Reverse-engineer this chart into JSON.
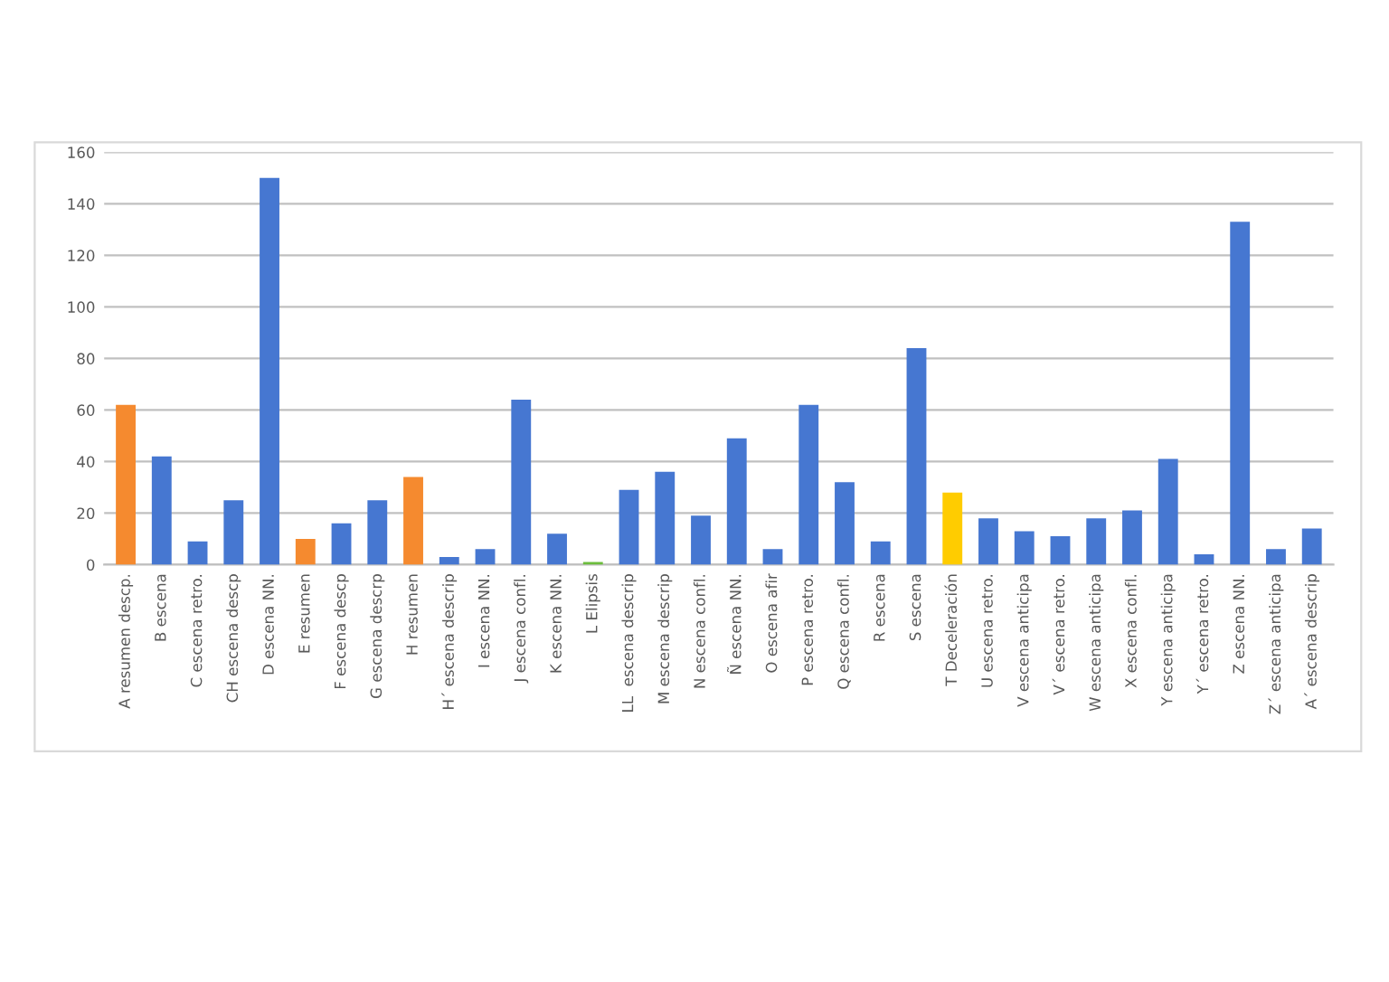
{
  "chart_data": {
    "type": "bar",
    "categories": [
      "A resumen descp.",
      "B escena",
      "C escena retro.",
      "CH escena descp",
      "D escena NN.",
      "E resumen",
      "F escena descp",
      "G escena descrp",
      "H resumen",
      "H´ escena descrip",
      "I escena NN.",
      "J escena confl.",
      "K escena NN.",
      "L Elipsis",
      "LL  escena descrip",
      "M escena descrip",
      "N escena confl.",
      "Ñ escena NN.",
      "O escena afir",
      "P escena retro.",
      "Q escena confl.",
      "R escena",
      "S escena",
      "T Deceleración",
      "U escena retro.",
      "V escena anticipa",
      "V´ escena retro.",
      "W escena anticipa",
      "X escena confl.",
      "Y escena anticipa",
      "Y´ escena retro.",
      "Z escena NN.",
      "Z´ escena anticipa",
      "A´ escena descrip"
    ],
    "values": [
      62,
      42,
      9,
      25,
      150,
      10,
      16,
      25,
      34,
      3,
      6,
      64,
      12,
      1,
      29,
      36,
      19,
      49,
      6,
      62,
      32,
      9,
      84,
      28,
      18,
      13,
      11,
      18,
      21,
      41,
      4,
      133,
      6,
      14
    ],
    "colors": [
      "#f58a2f",
      "#4677d1",
      "#4677d1",
      "#4677d1",
      "#4677d1",
      "#f58a2f",
      "#4677d1",
      "#4677d1",
      "#f58a2f",
      "#4677d1",
      "#4677d1",
      "#4677d1",
      "#4677d1",
      "#6cbd3c",
      "#4677d1",
      "#4677d1",
      "#4677d1",
      "#4677d1",
      "#4677d1",
      "#4677d1",
      "#4677d1",
      "#4677d1",
      "#4677d1",
      "#ffcc00",
      "#4677d1",
      "#4677d1",
      "#4677d1",
      "#4677d1",
      "#4677d1",
      "#4677d1",
      "#4677d1",
      "#4677d1",
      "#4677d1",
      "#4677d1"
    ],
    "ylim": [
      0,
      160
    ],
    "yticks": [
      0,
      20,
      40,
      60,
      80,
      100,
      120,
      140,
      160
    ],
    "grid": "y"
  }
}
